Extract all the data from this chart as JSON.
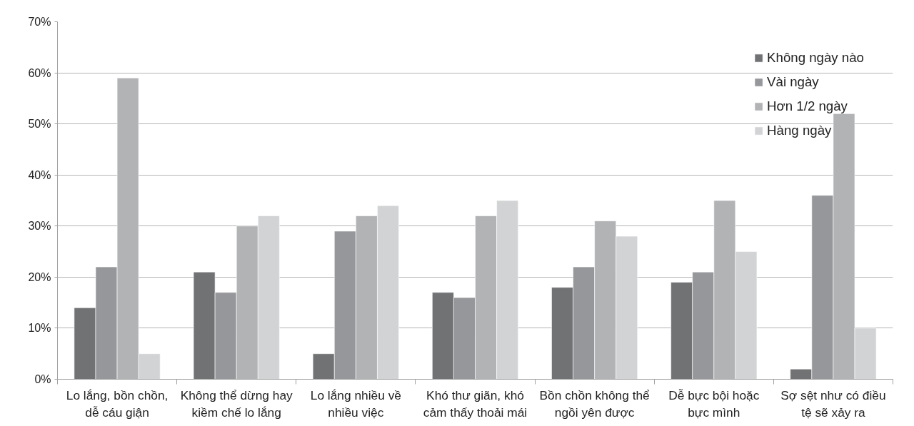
{
  "chart_data": {
    "type": "bar",
    "categories": [
      "Lo lắng, bồn chồn, dễ cáu giận",
      "Không thể dừng hay kiềm chế lo lắng",
      "Lo lắng nhiều về nhiều việc",
      "Khó thư giãn, khó cảm thấy thoải mái",
      "Bồn chồn không thể ngồi yên được",
      "Dễ bực bội hoặc bực mình",
      "Sợ sệt như có điều tệ sẽ xảy ra"
    ],
    "series": [
      {
        "name": "Không ngày nào",
        "color": "#717274",
        "values": [
          14,
          21,
          5,
          17,
          18,
          19,
          2
        ]
      },
      {
        "name": "Vài ngày",
        "color": "#96979a",
        "values": [
          22,
          17,
          29,
          16,
          22,
          21,
          36
        ]
      },
      {
        "name": "Hơn 1/2 ngày",
        "color": "#b2b3b5",
        "values": [
          59,
          30,
          32,
          32,
          31,
          35,
          52
        ]
      },
      {
        "name": "Hàng ngày",
        "color": "#d2d3d5",
        "values": [
          5,
          32,
          34,
          35,
          28,
          25,
          10
        ]
      }
    ],
    "ylim": [
      0,
      70
    ],
    "yticks": [
      {
        "value": 0,
        "label": "0%"
      },
      {
        "value": 10,
        "label": "10%"
      },
      {
        "value": 20,
        "label": "20%"
      },
      {
        "value": 30,
        "label": "30%"
      },
      {
        "value": 40,
        "label": "40%"
      },
      {
        "value": 50,
        "label": "50%"
      },
      {
        "value": 60,
        "label": "60%"
      },
      {
        "value": 70,
        "label": "70%"
      }
    ],
    "grid": "y",
    "legend": "top right"
  }
}
